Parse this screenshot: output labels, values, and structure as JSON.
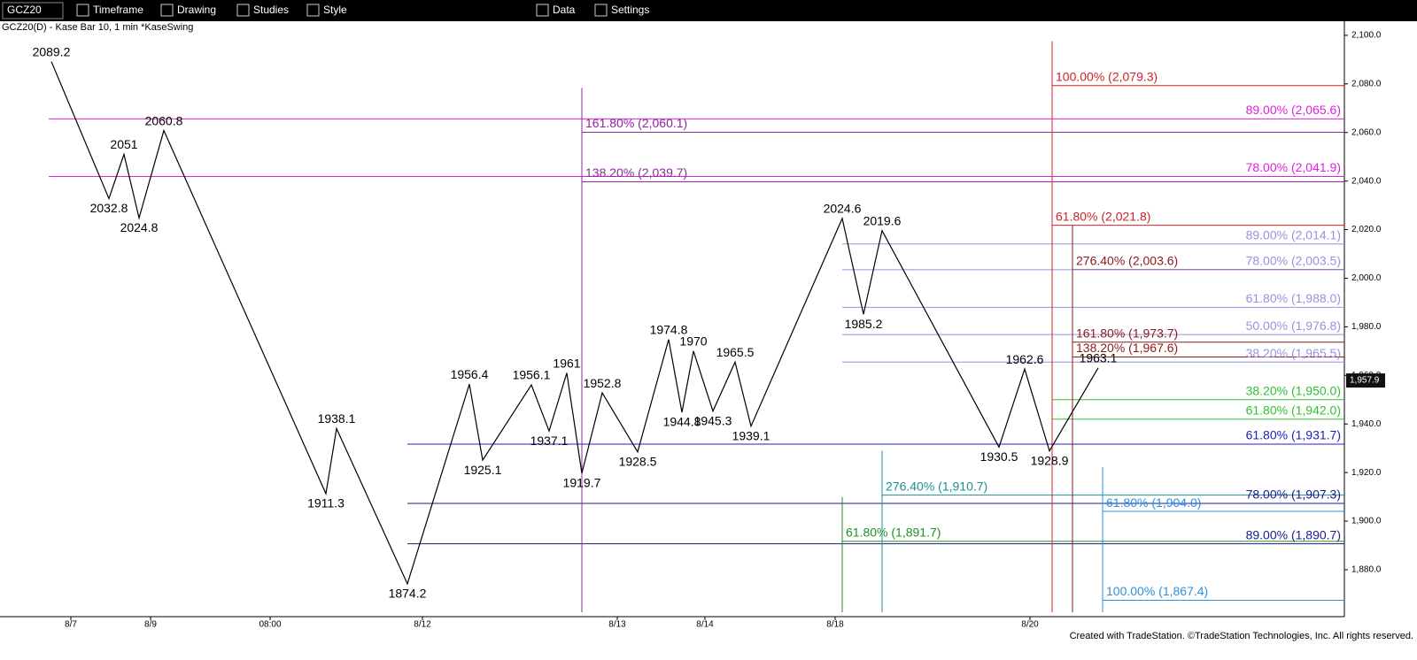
{
  "toolbar": {
    "symbol": "GCZ20",
    "buttons": [
      "Timeframe",
      "Drawing",
      "Studies",
      "Style",
      "Data",
      "Settings"
    ]
  },
  "chart_label": "GCZ20(D) - Kase Bar 10, 1 min  *KaseSwing",
  "footer": "Created with TradeStation. ©TradeStation Technologies, Inc. All rights reserved.",
  "chart_data": {
    "type": "line",
    "x": [
      11.6,
      24.6,
      28,
      31.4,
      37,
      73.6,
      76,
      92,
      106,
      109,
      120,
      124,
      128,
      131.4,
      136,
      144,
      151,
      154,
      156.6,
      161,
      166,
      169.6,
      190.2,
      195,
      199.2,
      225.6,
      231.4,
      237,
      248
    ],
    "series": [
      {
        "name": "KaseSwing",
        "color": "#000000",
        "values": [
          2089.2,
          2032.8,
          2051.0,
          2024.8,
          2060.8,
          1911.3,
          1938.1,
          1874.2,
          1956.4,
          1925.1,
          1956.1,
          1937.1,
          1961.0,
          1919.7,
          1952.8,
          1928.5,
          1974.8,
          1944.8,
          1970.0,
          1945.3,
          1965.5,
          1939.1,
          2024.6,
          1985.2,
          2019.6,
          1930.5,
          1962.6,
          1928.9,
          1963.1
        ]
      }
    ],
    "xlim": [
      0,
      303.6
    ],
    "xticks": [
      {
        "value": 16,
        "label": "8/7"
      },
      {
        "value": 34,
        "label": "8/9"
      },
      {
        "value": 61,
        "label": "08:00"
      },
      {
        "value": 95.4,
        "label": "8/12"
      },
      {
        "value": 139.4,
        "label": "8/13"
      },
      {
        "value": 159.2,
        "label": "8/14"
      },
      {
        "value": 188.6,
        "label": "8/18"
      },
      {
        "value": 232.6,
        "label": "8/20"
      }
    ],
    "ylim": [
      1862.5,
      2105.8
    ],
    "yticks": [
      {
        "value": 2100,
        "label": "2,100.0"
      },
      {
        "value": 2080,
        "label": "2,080.0"
      },
      {
        "value": 2060,
        "label": "2,060.0"
      },
      {
        "value": 2040,
        "label": "2,040.0"
      },
      {
        "value": 2020,
        "label": "2,020.0"
      },
      {
        "value": 2000,
        "label": "2,000.0"
      },
      {
        "value": 1980,
        "label": "1,980.0"
      },
      {
        "value": 1960,
        "label": "1,960.0"
      },
      {
        "value": 1940,
        "label": "1,940.0"
      },
      {
        "value": 1920,
        "label": "1,920.0"
      },
      {
        "value": 1900,
        "label": "1,900.0"
      },
      {
        "value": 1880,
        "label": "1,880.0"
      }
    ],
    "last_price": {
      "value": 1957.9,
      "label": "1,957.9"
    },
    "levels": [
      {
        "label": "100.00% (2,079.3)",
        "value": 2079.3,
        "start": 237.6,
        "align": "left",
        "color": "#d0202a"
      },
      {
        "label": "89.00% (2,065.6)",
        "value": 2065.6,
        "start": 11,
        "align": "right",
        "color": "#e020e0"
      },
      {
        "label": "161.80% (2,060.1)",
        "value": 2060.1,
        "start": 131.4,
        "align": "left",
        "color": "#8a2a9a"
      },
      {
        "label": "78.00% (2,041.9)",
        "value": 2041.9,
        "start": 11,
        "align": "right",
        "color": "#e020e0"
      },
      {
        "label": "138.20% (2,039.7)",
        "value": 2039.7,
        "start": 131.4,
        "align": "left",
        "color": "#8a2a9a"
      },
      {
        "label": "61.80% (2,021.8)",
        "value": 2021.8,
        "start": 237.6,
        "align": "left",
        "color": "#d0202a"
      },
      {
        "label": "89.00% (2,014.1)",
        "value": 2014.1,
        "start": 190.2,
        "align": "right",
        "color": "#9a90e0"
      },
      {
        "label": "276.40% (2,003.6)",
        "value": 2003.6,
        "start": 242.2,
        "align": "left",
        "color": "#8b1a1a"
      },
      {
        "label": "78.00% (2,003.5)",
        "value": 2003.5,
        "start": 190.2,
        "align": "right",
        "color": "#9a90e0"
      },
      {
        "label": "61.80% (1,988.0)",
        "value": 1988.0,
        "start": 190.2,
        "align": "right",
        "color": "#9a90e0"
      },
      {
        "label": "50.00% (1,976.8)",
        "value": 1976.8,
        "start": 190.2,
        "align": "right",
        "color": "#9a90e0"
      },
      {
        "label": "161.80% (1,973.7)",
        "value": 1973.7,
        "start": 242.2,
        "align": "left",
        "color": "#8b1a1a"
      },
      {
        "label": "138.20% (1,967.6)",
        "value": 1967.6,
        "start": 242.2,
        "align": "left",
        "color": "#8b1a1a"
      },
      {
        "label": "38.20% (1,965.5)",
        "value": 1965.5,
        "start": 190.2,
        "align": "right",
        "color": "#9a90e0"
      },
      {
        "label": "38.20% (1,950.0)",
        "value": 1950.0,
        "start": 237.6,
        "align": "right",
        "color": "#30c030"
      },
      {
        "label": "61.80% (1,942.0)",
        "value": 1942.0,
        "start": 237.6,
        "align": "right",
        "color": "#30c030"
      },
      {
        "label": "61.80% (1,931.7)",
        "value": 1931.7,
        "start": 92,
        "align": "right",
        "color": "#2020c0"
      },
      {
        "label": "276.40% (1,910.7)",
        "value": 1910.7,
        "start": 199.2,
        "align": "left",
        "color": "#1a9090"
      },
      {
        "label": "78.00% (1,907.3)",
        "value": 1907.3,
        "start": 92,
        "align": "right",
        "color": "#1a1a90"
      },
      {
        "label": "61.80% (1,904.0)",
        "value": 1904.0,
        "start": 249,
        "align": "left",
        "color": "#2a90e0"
      },
      {
        "label": "61.80% (1,891.7)",
        "value": 1891.7,
        "start": 190.2,
        "align": "left",
        "color": "#209020"
      },
      {
        "label": "89.00% (1,890.7)",
        "value": 1890.7,
        "start": 92,
        "align": "right",
        "color": "#1a1a90"
      },
      {
        "label": "100.00% (1,867.4)",
        "value": 1867.4,
        "start": 249,
        "align": "left",
        "color": "#2a90e0"
      }
    ]
  }
}
